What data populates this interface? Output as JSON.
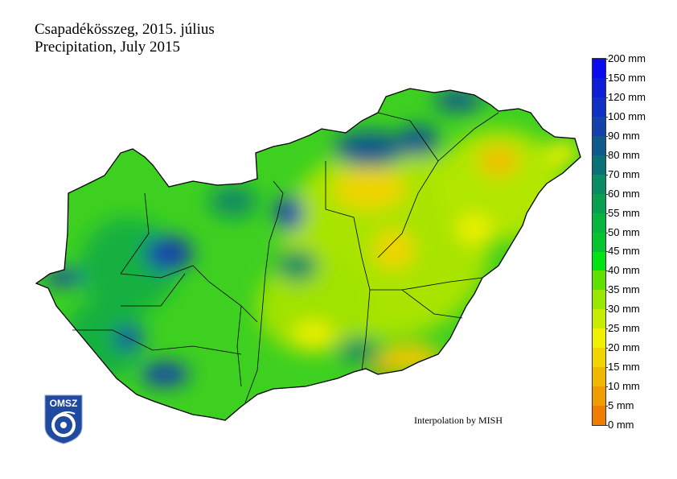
{
  "title": {
    "line1": "Csapadékösszeg, 2015. július",
    "line2": "Precipitation, July 2015"
  },
  "legend": {
    "labels": [
      "200 mm",
      "150 mm",
      "120 mm",
      "100 mm",
      "90 mm",
      "80 mm",
      "70 mm",
      "60 mm",
      "55 mm",
      "50 mm",
      "45 mm",
      "40 mm",
      "35 mm",
      "30 mm",
      "25 mm",
      "20 mm",
      "15 mm",
      "10 mm",
      "5 mm",
      "0 mm"
    ],
    "colors": [
      "#0a0aee",
      "#0c1ed8",
      "#1030c4",
      "#1442aa",
      "#0e5a8c",
      "#0a7276",
      "#0a8c62",
      "#08a050",
      "#08b440",
      "#06c430",
      "#00e414",
      "#60e000",
      "#98e800",
      "#c8ec00",
      "#f0f000",
      "#f0d400",
      "#f0b800",
      "#f09c00",
      "#f07c00"
    ]
  },
  "credit": "Interpolation by MISH",
  "logo": {
    "text": "OMSZ",
    "color": "#1f4aa0"
  }
}
